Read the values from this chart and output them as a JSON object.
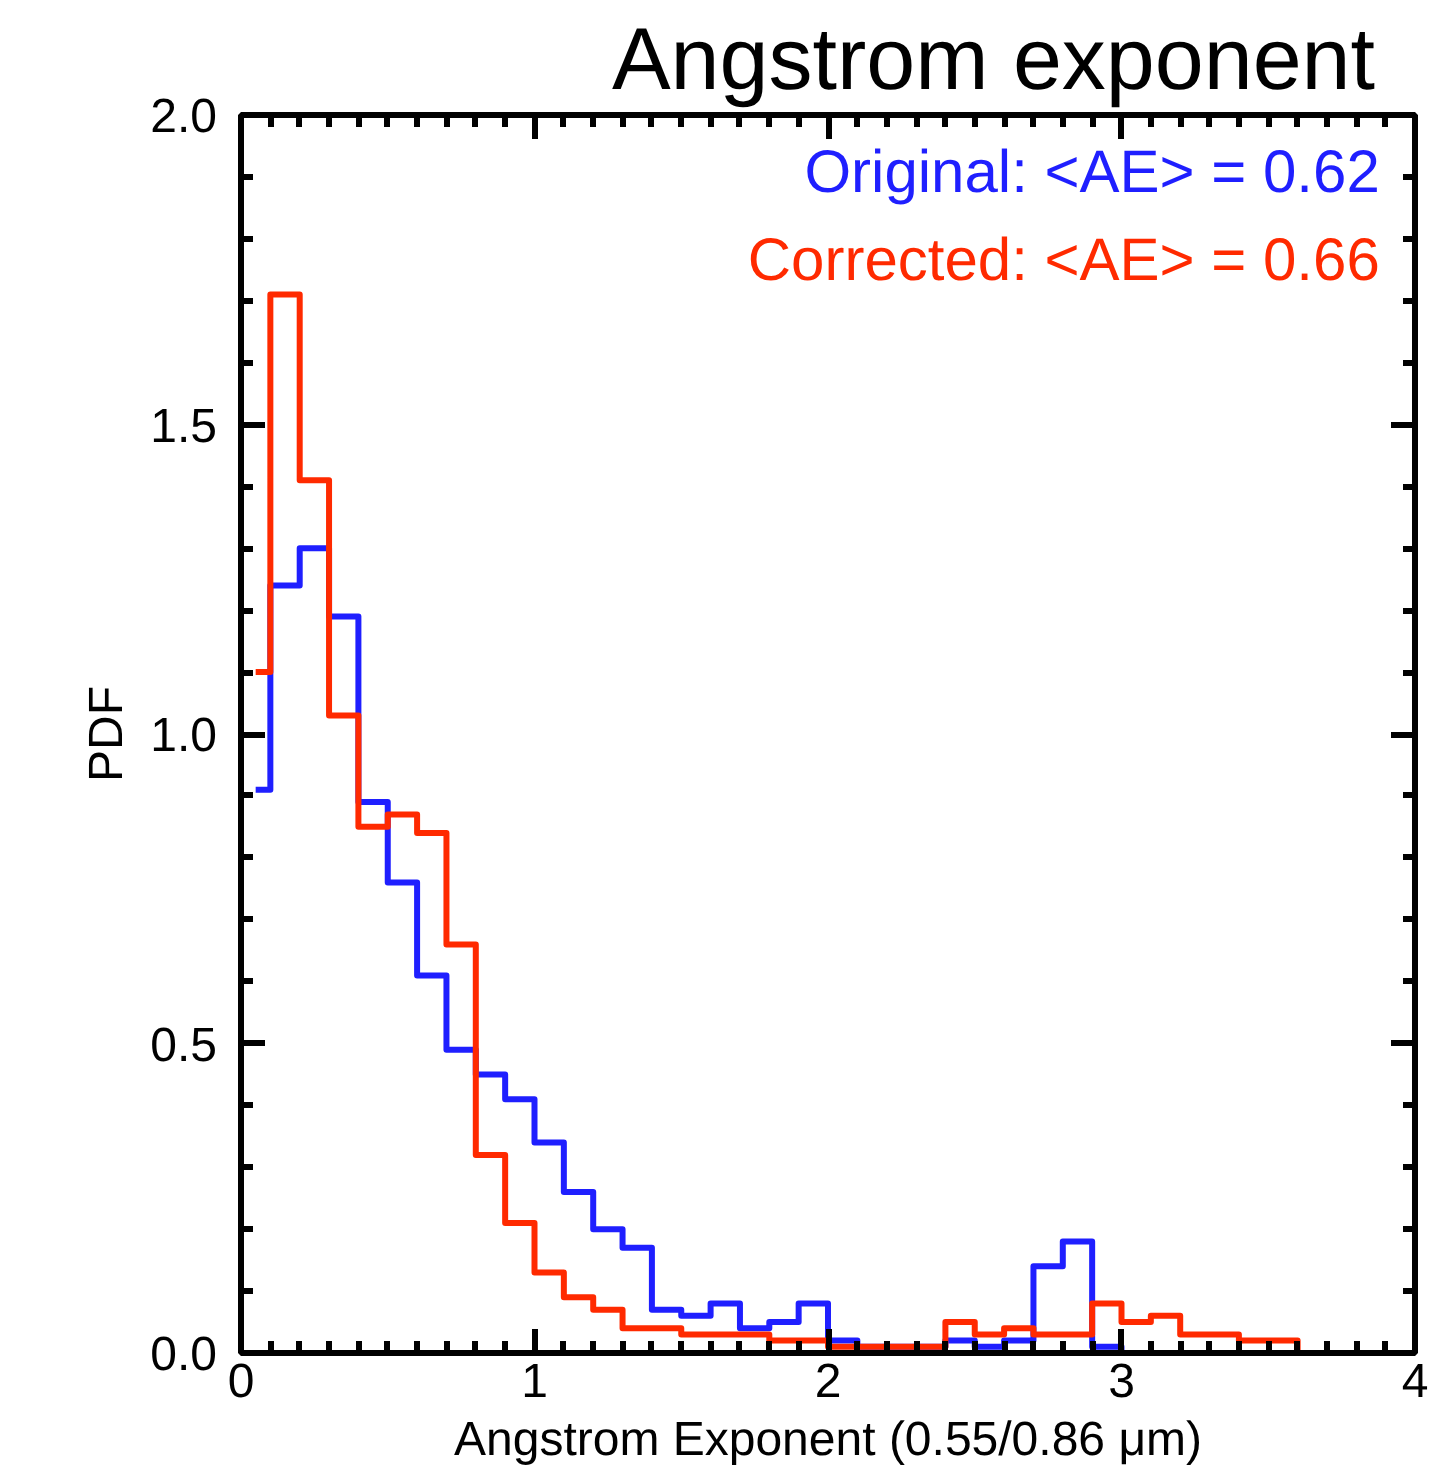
{
  "chart_data": {
    "type": "histogram",
    "title": "Angstrom exponent",
    "xlabel": "Angstrom Exponent (0.55/0.86 μm)",
    "ylabel": "PDF",
    "bins": [
      0.05,
      0.1,
      0.2,
      0.3,
      0.4,
      0.5,
      0.6,
      0.7,
      0.8,
      0.9,
      1.0,
      1.1,
      1.2,
      1.3,
      1.4,
      1.5,
      1.6,
      1.7,
      1.8,
      1.9,
      2.0,
      2.1,
      2.2,
      2.3,
      2.4,
      2.5,
      2.6,
      2.7,
      2.8,
      2.9,
      3.0,
      3.1,
      3.2,
      3.3,
      3.4,
      3.5,
      3.6,
      3.7,
      3.8,
      3.9,
      4.0
    ],
    "series": [
      {
        "name": "Original: <AE> = 0.62",
        "color": "#1f1fff",
        "values": [
          0.91,
          1.24,
          1.3,
          1.19,
          0.89,
          0.76,
          0.61,
          0.49,
          0.45,
          0.41,
          0.34,
          0.26,
          0.2,
          0.17,
          0.07,
          0.06,
          0.08,
          0.04,
          0.05,
          0.08,
          0.02,
          0.01,
          0.01,
          0.01,
          0.02,
          0.01,
          0.02,
          0.14,
          0.18,
          0.01,
          0,
          0,
          0,
          0,
          0,
          0,
          0,
          0,
          0,
          0
        ]
      },
      {
        "name": "Corrected: <AE> = 0.66",
        "color": "#ff2a00",
        "values": [
          1.1,
          1.71,
          1.41,
          1.03,
          0.85,
          0.87,
          0.84,
          0.66,
          0.32,
          0.21,
          0.13,
          0.09,
          0.07,
          0.04,
          0.04,
          0.03,
          0.03,
          0.03,
          0.02,
          0.02,
          0.01,
          0.01,
          0.01,
          0.01,
          0.05,
          0.03,
          0.04,
          0.03,
          0.03,
          0.08,
          0.05,
          0.06,
          0.03,
          0.03,
          0.02,
          0.02,
          0,
          0,
          0,
          0
        ]
      }
    ],
    "xlim": [
      0,
      4
    ],
    "xticks": [
      0,
      1,
      2,
      3,
      4
    ],
    "ylim": [
      0,
      2
    ],
    "yticks": [
      {
        "value": 0,
        "label": "0.0"
      },
      {
        "value": 0.5,
        "label": "0.5"
      },
      {
        "value": 1,
        "label": "1.0"
      },
      {
        "value": 1.5,
        "label": "1.5"
      },
      {
        "value": 2,
        "label": "2.0"
      }
    ],
    "grid": false,
    "legend": "top right",
    "line_style": "solid"
  }
}
